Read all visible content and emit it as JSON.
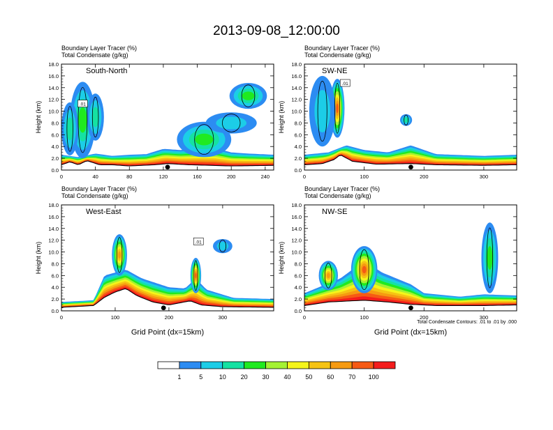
{
  "title": "2013-09-08_12:00:00",
  "colorbar": {
    "colors": [
      "#ffffff",
      "#2c8cf2",
      "#1ccde7",
      "#15e2a2",
      "#20ea20",
      "#a4f233",
      "#f5f51a",
      "#f6c313",
      "#f69a11",
      "#f65a14",
      "#f41c1c"
    ],
    "labels": [
      "1",
      "5",
      "10",
      "20",
      "30",
      "40",
      "50",
      "60",
      "70",
      "100"
    ]
  },
  "chart_data": [
    {
      "type": "contour",
      "label": "South-North",
      "title_lines": [
        "Boundary Layer Tracer    (%)",
        "Total Condensate    (g/kg)"
      ],
      "ylabel": "Height (km)",
      "xlabel": "",
      "ylim": [
        0,
        18
      ],
      "yticks": [
        "0.0",
        "2.0",
        "4.0",
        "6.0",
        "8.0",
        "10.0",
        "12.0",
        "14.0",
        "16.0",
        "18.0"
      ],
      "xlim": [
        0,
        250
      ],
      "xticks": [
        0,
        40,
        80,
        120,
        160,
        200,
        240
      ],
      "marker_x": 125,
      "box_label": ".01",
      "box_x": 25,
      "box_y": 11.3,
      "terrain": [
        [
          0,
          0.9
        ],
        [
          10,
          1.4
        ],
        [
          20,
          0.9
        ],
        [
          30,
          1.6
        ],
        [
          45,
          0.9
        ],
        [
          60,
          0.9
        ],
        [
          80,
          0.7
        ],
        [
          110,
          0.9
        ],
        [
          125,
          1.1
        ],
        [
          150,
          0.9
        ],
        [
          200,
          0.7
        ],
        [
          250,
          0.8
        ]
      ],
      "pbl_top": [
        [
          0,
          2.6
        ],
        [
          20,
          2.2
        ],
        [
          40,
          2.8
        ],
        [
          60,
          2.4
        ],
        [
          80,
          2.6
        ],
        [
          100,
          2.7
        ],
        [
          120,
          3.6
        ],
        [
          140,
          3.4
        ],
        [
          160,
          3.7
        ],
        [
          180,
          3.8
        ],
        [
          200,
          3.0
        ],
        [
          220,
          2.8
        ],
        [
          250,
          2.6
        ]
      ],
      "blobs": [
        {
          "x": 168,
          "y": 5.2,
          "rx": 32,
          "ry": 3.0,
          "v": 20
        },
        {
          "x": 200,
          "y": 8.0,
          "rx": 30,
          "ry": 1.8,
          "v": 5
        },
        {
          "x": 220,
          "y": 12.6,
          "rx": 22,
          "ry": 2.2,
          "v": 20
        },
        {
          "x": 25,
          "y": 8.5,
          "rx": 15,
          "ry": 6.5,
          "v": 20
        },
        {
          "x": 10,
          "y": 7.0,
          "rx": 10,
          "ry": 4.5,
          "v": 10
        },
        {
          "x": 40,
          "y": 9.0,
          "rx": 10,
          "ry": 4.0,
          "v": 10
        }
      ]
    },
    {
      "type": "contour",
      "label": "SW-NE",
      "title_lines": [
        "Boundary Layer Tracer    (%)",
        "Total Condensate    (g/kg)"
      ],
      "ylabel": "Height (km)",
      "xlabel": "",
      "ylim": [
        0,
        18
      ],
      "yticks": [
        "0.0",
        "2.0",
        "4.0",
        "6.0",
        "8.0",
        "10.0",
        "12.0",
        "14.0",
        "16.0",
        "18.0"
      ],
      "xlim": [
        0,
        355
      ],
      "xticks": [
        0,
        100,
        200,
        300
      ],
      "marker_x": 178,
      "box_label": ".01",
      "box_x": 68,
      "box_y": 14.8,
      "terrain": [
        [
          0,
          0.9
        ],
        [
          30,
          1.1
        ],
        [
          50,
          1.8
        ],
        [
          60,
          2.6
        ],
        [
          80,
          1.5
        ],
        [
          120,
          1.0
        ],
        [
          178,
          1.1
        ],
        [
          220,
          0.9
        ],
        [
          300,
          0.8
        ],
        [
          355,
          0.9
        ]
      ],
      "pbl_top": [
        [
          0,
          2.6
        ],
        [
          40,
          3.0
        ],
        [
          70,
          4.2
        ],
        [
          100,
          3.4
        ],
        [
          140,
          3.0
        ],
        [
          178,
          4.2
        ],
        [
          220,
          2.7
        ],
        [
          300,
          2.4
        ],
        [
          355,
          2.6
        ]
      ],
      "blobs": [
        {
          "x": 55,
          "y": 10.5,
          "rx": 12,
          "ry": 5.0,
          "v": 70
        },
        {
          "x": 30,
          "y": 10.0,
          "rx": 22,
          "ry": 6.0,
          "v": 5
        },
        {
          "x": 170,
          "y": 8.5,
          "rx": 10,
          "ry": 1.0,
          "v": 10
        }
      ]
    },
    {
      "type": "contour",
      "label": "West-East",
      "title_lines": [
        "Boundary Layer Tracer    (%)",
        "Total Condensate    (g/kg)"
      ],
      "ylabel": "Height (km)",
      "xlabel": "Grid Point (dx=15km)",
      "ylim": [
        0,
        18
      ],
      "yticks": [
        "0.0",
        "2.0",
        "4.0",
        "6.0",
        "8.0",
        "10.0",
        "12.0",
        "14.0",
        "16.0",
        "18.0"
      ],
      "xlim": [
        0,
        395
      ],
      "xticks": [
        0,
        100,
        200,
        300
      ],
      "marker_x": 190,
      "box_label": ".01",
      "box_x": 255,
      "box_y": 11.8,
      "terrain": [
        [
          0,
          0.6
        ],
        [
          60,
          0.9
        ],
        [
          80,
          2.3
        ],
        [
          100,
          3.2
        ],
        [
          120,
          3.8
        ],
        [
          140,
          2.6
        ],
        [
          170,
          1.5
        ],
        [
          200,
          1.0
        ],
        [
          240,
          1.7
        ],
        [
          260,
          1.0
        ],
        [
          300,
          0.7
        ],
        [
          395,
          0.6
        ]
      ],
      "pbl_top": [
        [
          0,
          1.5
        ],
        [
          60,
          1.8
        ],
        [
          80,
          6.0
        ],
        [
          120,
          7.0
        ],
        [
          150,
          5.5
        ],
        [
          200,
          4.0
        ],
        [
          230,
          3.8
        ],
        [
          250,
          5.5
        ],
        [
          270,
          3.6
        ],
        [
          320,
          2.2
        ],
        [
          395,
          2.0
        ]
      ],
      "blobs": [
        {
          "x": 108,
          "y": 9.5,
          "rx": 14,
          "ry": 3.5,
          "v": 60
        },
        {
          "x": 250,
          "y": 6.0,
          "rx": 10,
          "ry": 3.0,
          "v": 70
        },
        {
          "x": 300,
          "y": 11.0,
          "rx": 18,
          "ry": 1.2,
          "v": 5
        }
      ]
    },
    {
      "type": "contour",
      "label": "NW-SE",
      "title_lines": [
        "Boundary Layer Tracer    (%)",
        "Total Condensate    (g/kg)"
      ],
      "ylabel": "Height (km)",
      "xlabel": "Grid Point (dx=15km)",
      "ylim": [
        0,
        18
      ],
      "yticks": [
        "0.0",
        "2.0",
        "4.0",
        "6.0",
        "8.0",
        "10.0",
        "12.0",
        "14.0",
        "16.0",
        "18.0"
      ],
      "xlim": [
        0,
        355
      ],
      "xticks": [
        0,
        100,
        200,
        300
      ],
      "marker_x": 178,
      "box_label": "",
      "box_x": 0,
      "box_y": 0,
      "terrain": [
        [
          0,
          0.9
        ],
        [
          40,
          1.5
        ],
        [
          100,
          1.8
        ],
        [
          140,
          1.5
        ],
        [
          178,
          1.1
        ],
        [
          220,
          0.9
        ],
        [
          300,
          0.9
        ],
        [
          355,
          1.0
        ]
      ],
      "pbl_top": [
        [
          0,
          3.0
        ],
        [
          60,
          5.5
        ],
        [
          100,
          8.5
        ],
        [
          130,
          6.5
        ],
        [
          178,
          4.5
        ],
        [
          200,
          3.0
        ],
        [
          260,
          2.4
        ],
        [
          300,
          2.8
        ],
        [
          355,
          2.6
        ]
      ],
      "blobs": [
        {
          "x": 100,
          "y": 7.0,
          "rx": 22,
          "ry": 4.0,
          "v": 70
        },
        {
          "x": 310,
          "y": 9.0,
          "rx": 14,
          "ry": 6.0,
          "v": 20
        },
        {
          "x": 40,
          "y": 6.0,
          "rx": 16,
          "ry": 2.5,
          "v": 60
        }
      ],
      "footnote": "Total Condensate Contours: .01 to .01 by .000"
    }
  ]
}
